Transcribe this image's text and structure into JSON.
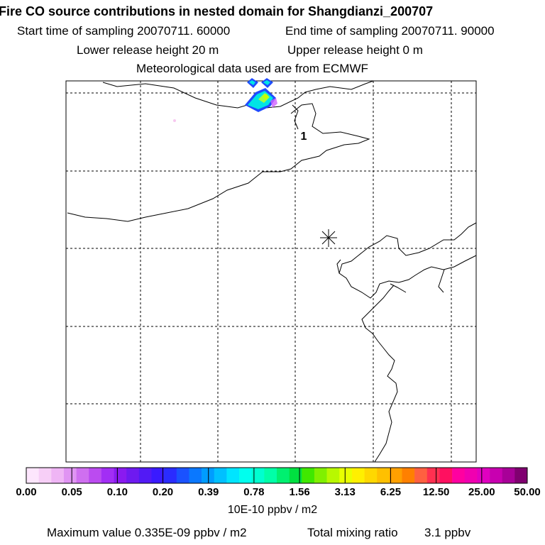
{
  "header": {
    "title": "Fire CO source contributions in nested domain for Shangdianzi_200707",
    "start_sampling": "Start time of sampling 20070711. 60000",
    "end_sampling": "End time of sampling 20070711. 90000",
    "lower_release": "Lower release height   20 m",
    "upper_release": "Upper release height    0 m",
    "met_data": "Meteorological data used are from ECMWF"
  },
  "map": {
    "station_marker": "asterisk-station",
    "label_1": "1",
    "colors": {
      "coast": "#000000",
      "grid": "#000000",
      "plume_outer": "#1e4bff",
      "plume_mid": "#00e5e5",
      "plume_core": "#c8ff00",
      "plume_edge": "#d060ff"
    }
  },
  "colorbar": {
    "unit_label": "10E-10 ppbv / m2",
    "ticks": [
      "0.00",
      "0.05",
      "0.10",
      "0.20",
      "0.39",
      "0.78",
      "1.56",
      "3.13",
      "6.25",
      "12.50",
      "25.00",
      "50.00"
    ],
    "colors": [
      "#fde6fd",
      "#f7cff7",
      "#efb5f5",
      "#e094f3",
      "#cf6ff0",
      "#bb4bf0",
      "#a22ef5",
      "#8a1af0",
      "#6e1af0",
      "#521af5",
      "#3a1aff",
      "#2a2cff",
      "#1a52ff",
      "#0a78ff",
      "#009cff",
      "#00c0ff",
      "#00e5ff",
      "#00ffee",
      "#00ffd0",
      "#00ffa8",
      "#00f070",
      "#00e040",
      "#40e800",
      "#80f000",
      "#b8f800",
      "#e8ff00",
      "#fff000",
      "#ffd800",
      "#ffc000",
      "#ffa000",
      "#ff8000",
      "#ff6040",
      "#ff3050",
      "#ff1060",
      "#ff00a0",
      "#f000b0",
      "#e000c0",
      "#c800b0",
      "#a80098",
      "#800070"
    ]
  },
  "footer": {
    "max_value": "Maximum value  0.335E-09 ppbv / m2",
    "total_label": "Total mixing ratio",
    "total_value": "3.1 ppbv"
  }
}
